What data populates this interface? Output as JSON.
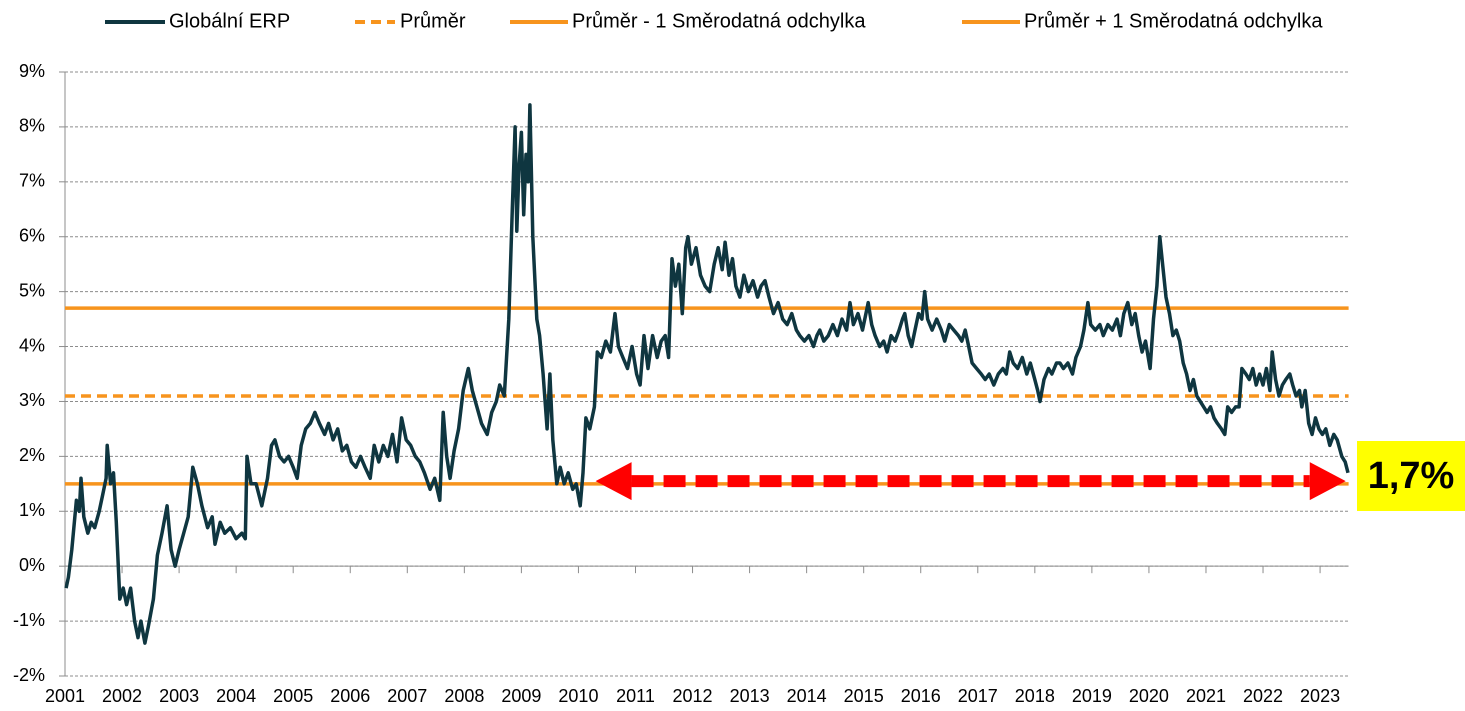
{
  "chart_data": {
    "type": "line",
    "series": [
      {
        "name": "Globální ERP",
        "color": "#0f3640",
        "x": [
          2001.02,
          2001.06,
          2001.12,
          2001.2,
          2001.25,
          2001.28,
          2001.33,
          2001.4,
          2001.46,
          2001.52,
          2001.6,
          2001.66,
          2001.72,
          2001.74,
          2001.8,
          2001.85,
          2001.9,
          2001.96,
          2002.02,
          2002.08,
          2002.15,
          2002.22,
          2002.28,
          2002.33,
          2002.4,
          2002.46,
          2002.55,
          2002.62,
          2002.7,
          2002.79,
          2002.86,
          2002.93,
          2003.0,
          2003.08,
          2003.16,
          2003.24,
          2003.32,
          2003.4,
          2003.5,
          2003.58,
          2003.63,
          2003.72,
          2003.8,
          2003.9,
          2004.0,
          2004.1,
          2004.16,
          2004.19,
          2004.26,
          2004.35,
          2004.45,
          2004.55,
          2004.62,
          2004.68,
          2004.76,
          2004.84,
          2004.92,
          2005.0,
          2005.07,
          2005.14,
          2005.22,
          2005.3,
          2005.38,
          2005.46,
          2005.55,
          2005.62,
          2005.7,
          2005.78,
          2005.86,
          2005.94,
          2006.02,
          2006.1,
          2006.18,
          2006.26,
          2006.35,
          2006.42,
          2006.5,
          2006.58,
          2006.66,
          2006.74,
          2006.82,
          2006.9,
          2006.98,
          2007.06,
          2007.14,
          2007.22,
          2007.3,
          2007.4,
          2007.48,
          2007.57,
          2007.63,
          2007.69,
          2007.75,
          2007.82,
          2007.9,
          2007.98,
          2008.07,
          2008.14,
          2008.22,
          2008.3,
          2008.4,
          2008.48,
          2008.56,
          2008.62,
          2008.7,
          2008.78,
          2008.84,
          2008.89,
          2008.92,
          2008.96,
          2009.0,
          2009.04,
          2009.08,
          2009.12,
          2009.15,
          2009.2,
          2009.27,
          2009.32,
          2009.38,
          2009.45,
          2009.5,
          2009.55,
          2009.62,
          2009.68,
          2009.75,
          2009.82,
          2009.9,
          2009.96,
          2010.03,
          2010.08,
          2010.13,
          2010.2,
          2010.28,
          2010.33,
          2010.4,
          2010.48,
          2010.56,
          2010.64,
          2010.7,
          2010.78,
          2010.86,
          2010.94,
          2011.02,
          2011.08,
          2011.15,
          2011.22,
          2011.3,
          2011.38,
          2011.45,
          2011.52,
          2011.58,
          2011.64,
          2011.7,
          2011.76,
          2011.82,
          2011.88,
          2011.92,
          2011.98,
          2012.06,
          2012.14,
          2012.22,
          2012.3,
          2012.38,
          2012.45,
          2012.52,
          2012.57,
          2012.64,
          2012.7,
          2012.76,
          2012.83,
          2012.9,
          2012.98,
          2013.06,
          2013.14,
          2013.2,
          2013.27,
          2013.34,
          2013.42,
          2013.5,
          2013.58,
          2013.66,
          2013.74,
          2013.82,
          2013.88,
          2013.96,
          2014.04,
          2014.12,
          2014.18,
          2014.23,
          2014.3,
          2014.38,
          2014.46,
          2014.54,
          2014.62,
          2014.7,
          2014.76,
          2014.82,
          2014.9,
          2014.98,
          2015.08,
          2015.14,
          2015.2,
          2015.28,
          2015.35,
          2015.41,
          2015.48,
          2015.55,
          2015.62,
          2015.68,
          2015.72,
          2015.78,
          2015.84,
          2015.9,
          2015.96,
          2016.02,
          2016.07,
          2016.12,
          2016.2,
          2016.28,
          2016.36,
          2016.42,
          2016.5,
          2016.58,
          2016.66,
          2016.72,
          2016.78,
          2016.84,
          2016.9,
          2016.98,
          2017.06,
          2017.13,
          2017.2,
          2017.28,
          2017.36,
          2017.44,
          2017.5,
          2017.56,
          2017.62,
          2017.7,
          2017.78,
          2017.86,
          2017.92,
          2018.0,
          2018.05,
          2018.09,
          2018.16,
          2018.24,
          2018.3,
          2018.38,
          2018.44,
          2018.5,
          2018.58,
          2018.66,
          2018.72,
          2018.8,
          2018.86,
          2018.93,
          2018.98,
          2019.06,
          2019.14,
          2019.2,
          2019.28,
          2019.36,
          2019.44,
          2019.5,
          2019.56,
          2019.63,
          2019.7,
          2019.76,
          2019.82,
          2019.88,
          2019.94,
          2020.02,
          2020.08,
          2020.14,
          2020.19,
          2020.24,
          2020.3,
          2020.36,
          2020.42,
          2020.48,
          2020.54,
          2020.6,
          2020.66,
          2020.72,
          2020.78,
          2020.84,
          2020.9,
          2020.96,
          2021.02,
          2021.08,
          2021.14,
          2021.2,
          2021.27,
          2021.33,
          2021.38,
          2021.45,
          2021.52,
          2021.58,
          2021.63,
          2021.7,
          2021.76,
          2021.82,
          2021.88,
          2021.94,
          2022.0,
          2022.06,
          2022.12,
          2022.16,
          2022.22,
          2022.28,
          2022.34,
          2022.4,
          2022.47,
          2022.52,
          2022.58,
          2022.64,
          2022.68,
          2022.74,
          2022.8,
          2022.86,
          2022.92,
          2022.98,
          2023.04,
          2023.1,
          2023.17,
          2023.24,
          2023.3,
          2023.38,
          2023.44,
          2023.49
        ],
        "values": [
          -0.4,
          -0.2,
          0.3,
          1.2,
          1.0,
          1.6,
          0.9,
          0.6,
          0.8,
          0.7,
          1.0,
          1.3,
          1.6,
          2.2,
          1.5,
          1.7,
          0.8,
          -0.6,
          -0.4,
          -0.7,
          -0.4,
          -1.0,
          -1.3,
          -1.0,
          -1.4,
          -1.1,
          -0.6,
          0.2,
          0.6,
          1.1,
          0.3,
          0.0,
          0.3,
          0.6,
          0.9,
          1.8,
          1.5,
          1.1,
          0.7,
          0.9,
          0.4,
          0.8,
          0.6,
          0.7,
          0.5,
          0.6,
          0.5,
          2.0,
          1.5,
          1.5,
          1.1,
          1.6,
          2.2,
          2.3,
          2.0,
          1.9,
          2.0,
          1.8,
          1.6,
          2.2,
          2.5,
          2.6,
          2.8,
          2.6,
          2.4,
          2.6,
          2.3,
          2.5,
          2.1,
          2.2,
          1.9,
          1.8,
          2.0,
          1.8,
          1.6,
          2.2,
          1.9,
          2.2,
          2.0,
          2.4,
          1.9,
          2.7,
          2.3,
          2.2,
          2.0,
          1.9,
          1.7,
          1.4,
          1.6,
          1.2,
          2.8,
          2.0,
          1.6,
          2.1,
          2.5,
          3.2,
          3.6,
          3.2,
          2.9,
          2.6,
          2.4,
          2.8,
          3.0,
          3.3,
          3.1,
          4.5,
          6.5,
          8.0,
          6.1,
          7.3,
          7.9,
          6.4,
          7.5,
          7.0,
          8.4,
          6.0,
          4.5,
          4.2,
          3.5,
          2.5,
          3.5,
          2.3,
          1.5,
          1.8,
          1.5,
          1.7,
          1.4,
          1.5,
          1.1,
          1.7,
          2.7,
          2.5,
          2.9,
          3.9,
          3.8,
          4.1,
          3.9,
          4.6,
          4.0,
          3.8,
          3.6,
          4.0,
          3.5,
          3.3,
          4.2,
          3.6,
          4.2,
          3.8,
          4.1,
          4.2,
          3.8,
          5.6,
          5.1,
          5.5,
          4.6,
          5.8,
          6.0,
          5.5,
          5.8,
          5.3,
          5.1,
          5.0,
          5.5,
          5.8,
          5.4,
          5.9,
          5.3,
          5.6,
          5.1,
          4.9,
          5.3,
          5.0,
          5.2,
          4.9,
          5.1,
          5.2,
          4.9,
          4.6,
          4.8,
          4.5,
          4.4,
          4.6,
          4.3,
          4.2,
          4.1,
          4.2,
          4.0,
          4.2,
          4.3,
          4.1,
          4.2,
          4.4,
          4.2,
          4.5,
          4.3,
          4.8,
          4.4,
          4.6,
          4.3,
          4.8,
          4.4,
          4.2,
          4.0,
          4.1,
          3.9,
          4.2,
          4.1,
          4.3,
          4.5,
          4.6,
          4.2,
          4.0,
          4.3,
          4.6,
          4.5,
          5.0,
          4.5,
          4.3,
          4.5,
          4.3,
          4.1,
          4.4,
          4.3,
          4.2,
          4.1,
          4.3,
          4.0,
          3.7,
          3.6,
          3.5,
          3.4,
          3.5,
          3.3,
          3.5,
          3.6,
          3.5,
          3.9,
          3.7,
          3.6,
          3.8,
          3.5,
          3.7,
          3.4,
          3.2,
          3.0,
          3.4,
          3.6,
          3.5,
          3.7,
          3.7,
          3.6,
          3.7,
          3.5,
          3.8,
          4.0,
          4.3,
          4.8,
          4.4,
          4.3,
          4.4,
          4.2,
          4.4,
          4.3,
          4.5,
          4.2,
          4.6,
          4.8,
          4.4,
          4.6,
          4.2,
          3.9,
          4.1,
          3.6,
          4.5,
          5.1,
          6.0,
          5.5,
          4.9,
          4.6,
          4.2,
          4.3,
          4.1,
          3.7,
          3.5,
          3.2,
          3.4,
          3.1,
          3.0,
          2.9,
          2.8,
          2.9,
          2.7,
          2.6,
          2.5,
          2.4,
          2.9,
          2.8,
          2.9,
          2.9,
          3.6,
          3.5,
          3.4,
          3.6,
          3.3,
          3.5,
          3.3,
          3.6,
          3.2,
          3.9,
          3.4,
          3.1,
          3.3,
          3.4,
          3.5,
          3.3,
          3.1,
          3.2,
          2.9,
          3.2,
          2.6,
          2.4,
          2.7,
          2.5,
          2.4,
          2.5,
          2.2,
          2.4,
          2.3,
          2.0,
          1.9,
          1.7
        ]
      }
    ],
    "reference_lines": [
      {
        "name": "Průměr",
        "value": 3.1,
        "color": "#f7941d",
        "dashed": true
      },
      {
        "name": "Průměr - 1 Směrodatná odchylka",
        "value": 1.5,
        "color": "#f7941d",
        "dashed": false
      },
      {
        "name": "Průměr + 1 Směrodatná odchylka",
        "value": 4.7,
        "color": "#f7941d",
        "dashed": false
      }
    ],
    "xlim": [
      2001,
      2023.5
    ],
    "xticks": [
      2001,
      2002,
      2003,
      2004,
      2005,
      2006,
      2007,
      2008,
      2009,
      2010,
      2011,
      2012,
      2013,
      2014,
      2015,
      2016,
      2017,
      2018,
      2019,
      2020,
      2021,
      2022,
      2023
    ],
    "ylim": [
      -2,
      9
    ],
    "yticks": [
      {
        "value": -2,
        "label": "-2%"
      },
      {
        "value": -1,
        "label": "-1%"
      },
      {
        "value": 0,
        "label": "0%"
      },
      {
        "value": 1,
        "label": "1%"
      },
      {
        "value": 2,
        "label": "2%"
      },
      {
        "value": 3,
        "label": "3%"
      },
      {
        "value": 4,
        "label": "4%"
      },
      {
        "value": 5,
        "label": "5%"
      },
      {
        "value": 6,
        "label": "6%"
      },
      {
        "value": 7,
        "label": "7%"
      },
      {
        "value": 8,
        "label": "8%"
      },
      {
        "value": 9,
        "label": "9%"
      }
    ],
    "grid": true,
    "legend": "top",
    "annotation": {
      "label": "1,7%",
      "value": 1.7,
      "color": "#ffff00",
      "arrow_color": "#ff0000",
      "arrow_x": [
        2010.3,
        2023.45
      ],
      "arrow_y": 1.55
    }
  }
}
